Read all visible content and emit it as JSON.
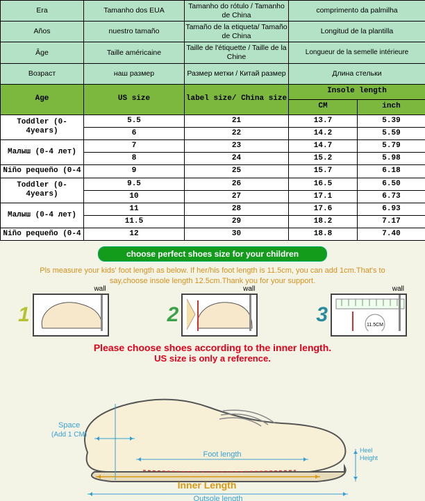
{
  "colors": {
    "header_bg": "#b4e2c6",
    "green_bg": "#7db83e",
    "banner_bg": "#139b1c",
    "instr_color": "#d3911f",
    "warn_color": "#e2001a",
    "lower_bg": "#f4f4e6"
  },
  "headers": {
    "row1": {
      "c1": "Era",
      "c2": "Tamanho dos EUA",
      "c3": "Tamanho do rótulo / Tamanho de China",
      "c4": "comprimento da palmilha"
    },
    "row2": {
      "c1": "Años",
      "c2": "nuestro tamaño",
      "c3": "Tamaño de la etiqueta/ Tamaño de China",
      "c4": "Longitud de la plantilla"
    },
    "row3": {
      "c1": "Âge",
      "c2": "Taille américaine",
      "c3": "Taille de l'étiquette / Taille de la Chine",
      "c4": "Longueur de la semelle intérieure"
    },
    "row4": {
      "c1": "Возраст",
      "c2": "наш размер",
      "c3": "Размер метки / Китай размер",
      "c4": "Длина стельки"
    },
    "row5": {
      "c1": "Age",
      "c2": "US size",
      "c3": "label size/ China size",
      "c4a": "Insole length",
      "c4b": "CM",
      "c4c": "inch"
    }
  },
  "rows": [
    {
      "age": "Toddler (0-4years)",
      "us": "5.5",
      "label": "21",
      "cm": "13.7",
      "inch": "5.39"
    },
    {
      "age": "",
      "us": "6",
      "label": "22",
      "cm": "14.2",
      "inch": "5.59"
    },
    {
      "age": "Малыш (0-4 лет)",
      "us": "7",
      "label": "23",
      "cm": "14.7",
      "inch": "5.79"
    },
    {
      "age": "",
      "us": "8",
      "label": "24",
      "cm": "15.2",
      "inch": "5.98"
    },
    {
      "age": "Niño pequeño (0-4",
      "us": "9",
      "label": "25",
      "cm": "15.7",
      "inch": "6.18"
    },
    {
      "age": "Toddler (0-4years)",
      "us": "9.5",
      "label": "26",
      "cm": "16.5",
      "inch": "6.50"
    },
    {
      "age": "",
      "us": "10",
      "label": "27",
      "cm": "17.1",
      "inch": "6.73"
    },
    {
      "age": "Малыш (0-4 лет)",
      "us": "11",
      "label": "28",
      "cm": "17.6",
      "inch": "6.93"
    },
    {
      "age": "",
      "us": "11.5",
      "label": "29",
      "cm": "18.2",
      "inch": "7.17"
    },
    {
      "age": "Niño pequeño (0-4",
      "us": "12",
      "label": "30",
      "cm": "18.8",
      "inch": "7.40"
    }
  ],
  "banner": "choose perfect shoes size for your children",
  "instruction": "Pls measure your kids' foot length as below. If her/his foot length is 11.5cm, you can add 1cm.That's to say,choose insole length 12.5cm.Thank you for your support.",
  "steps": {
    "s1": "1",
    "s2": "2",
    "s3": "3",
    "wall": "wall",
    "circ": "11.5CM"
  },
  "warning1": "Please choose shoes according to the inner length.",
  "warning2": "US size is only a reference.",
  "shoe": {
    "space_lbl": "Space",
    "space_sub": "(Add 1 CM)",
    "foot_len": "Foot length",
    "inner_len": "Inner Length",
    "outsole_len": "Outsole length",
    "heel_h": "Heel Height"
  }
}
